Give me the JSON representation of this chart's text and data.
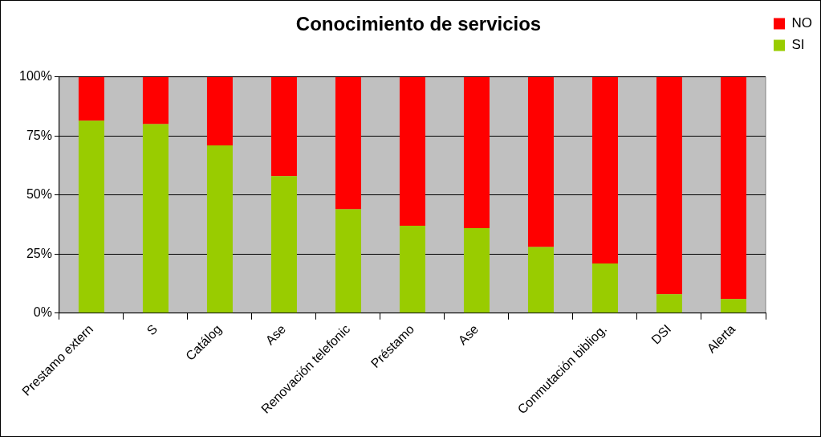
{
  "chart_data": {
    "type": "bar",
    "title": "Conocimiento de servicios",
    "stacked": true,
    "categories": [
      "Prestamo extern",
      "S",
      "Catálog",
      "Ase",
      "Renovación telefonic",
      "Préstamo",
      "Ase",
      null,
      "Conmutación bibliog.",
      "DSI",
      "Alerta"
    ],
    "series": [
      {
        "name": "SI",
        "color": "#99cc00",
        "values": [
          81.5,
          80,
          71,
          58,
          44,
          37,
          36,
          28,
          21,
          8,
          6
        ]
      },
      {
        "name": "NO",
        "color": "#ff0000",
        "values": [
          18.5,
          20,
          29,
          42,
          56,
          63,
          64,
          72,
          79,
          92,
          94
        ]
      }
    ],
    "ylim": [
      0,
      100
    ],
    "yticks": [
      {
        "value": 0,
        "label": "0%"
      },
      {
        "value": 25,
        "label": "25%"
      },
      {
        "value": 50,
        "label": "50%"
      },
      {
        "value": 75,
        "label": "75%"
      },
      {
        "value": 100,
        "label": "100%"
      }
    ],
    "grid": "y",
    "legend": "right"
  }
}
